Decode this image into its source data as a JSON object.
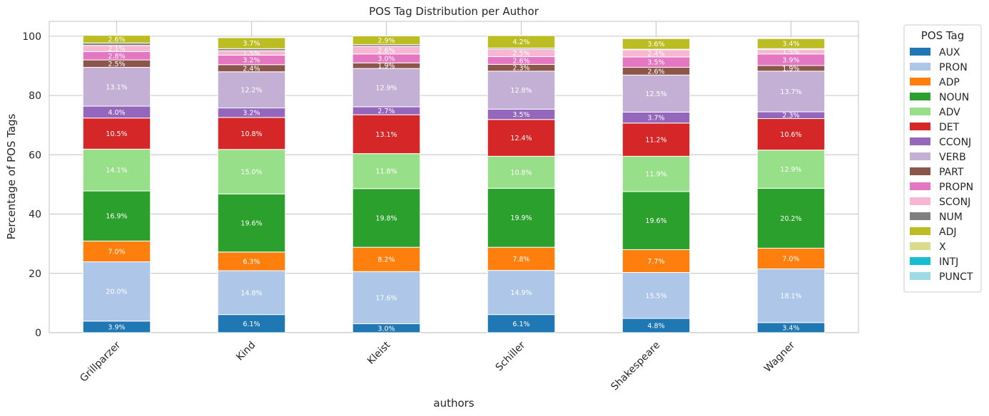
{
  "chart_data": {
    "type": "bar",
    "stacked": true,
    "title": "POS Tag Distribution per Author",
    "xlabel": "authors",
    "ylabel": "Percentage of POS Tags",
    "ylim": [
      0,
      105
    ],
    "yticks": [
      0,
      20,
      40,
      60,
      80,
      100
    ],
    "grid": true,
    "legend_title": "POS Tag",
    "legend_placement": "outside-right",
    "categories": [
      "Grillparzer",
      "Kind",
      "Kleist",
      "Schiller",
      "Shakespeare",
      "Wagner"
    ],
    "series": [
      {
        "name": "AUX",
        "color": "#1f77b4",
        "values": [
          3.9,
          6.1,
          3.0,
          6.1,
          4.8,
          3.4
        ]
      },
      {
        "name": "PRON",
        "color": "#aec7e8",
        "values": [
          20.0,
          14.8,
          17.6,
          14.9,
          15.5,
          18.1
        ]
      },
      {
        "name": "ADP",
        "color": "#ff7f0e",
        "values": [
          7.0,
          6.3,
          8.2,
          7.8,
          7.7,
          7.0
        ]
      },
      {
        "name": "NOUN",
        "color": "#2ca02c",
        "values": [
          16.9,
          19.6,
          19.8,
          19.9,
          19.6,
          20.2
        ]
      },
      {
        "name": "ADV",
        "color": "#98df8a",
        "values": [
          14.1,
          15.0,
          11.8,
          10.8,
          11.9,
          12.9
        ]
      },
      {
        "name": "DET",
        "color": "#d62728",
        "values": [
          10.5,
          10.8,
          13.1,
          12.4,
          11.2,
          10.6
        ]
      },
      {
        "name": "CCONJ",
        "color": "#9467bd",
        "values": [
          4.0,
          3.2,
          2.7,
          3.5,
          3.7,
          2.3
        ]
      },
      {
        "name": "VERB",
        "color": "#c5b0d5",
        "values": [
          13.1,
          12.2,
          12.9,
          12.8,
          12.5,
          13.7
        ]
      },
      {
        "name": "PART",
        "color": "#8c564b",
        "values": [
          2.5,
          2.4,
          1.9,
          2.3,
          2.6,
          1.9
        ]
      },
      {
        "name": "PROPN",
        "color": "#e377c2",
        "values": [
          2.8,
          3.2,
          3.0,
          2.6,
          3.5,
          3.9
        ]
      },
      {
        "name": "SCONJ",
        "color": "#f7b6d2",
        "values": [
          2.1,
          1.5,
          2.6,
          2.5,
          2.4,
          1.5
        ]
      },
      {
        "name": "NUM",
        "color": "#7f7f7f",
        "values": [
          0.8,
          0.7,
          0.6,
          0.4,
          0.2,
          0.3
        ]
      },
      {
        "name": "ADJ",
        "color": "#bcbd22",
        "values": [
          2.6,
          3.7,
          2.9,
          4.2,
          3.6,
          3.4
        ]
      },
      {
        "name": "X",
        "color": "#dbdb8d",
        "values": [
          0.2,
          0.1,
          0.1,
          0.1,
          0.2,
          0.2
        ]
      },
      {
        "name": "INTJ",
        "color": "#17becf",
        "values": [
          0.1,
          0.1,
          0.0,
          0.0,
          0.1,
          0.1
        ]
      },
      {
        "name": "PUNCT",
        "color": "#9edae5",
        "values": [
          0.0,
          0.0,
          0.0,
          0.0,
          0.0,
          0.0
        ]
      }
    ]
  }
}
